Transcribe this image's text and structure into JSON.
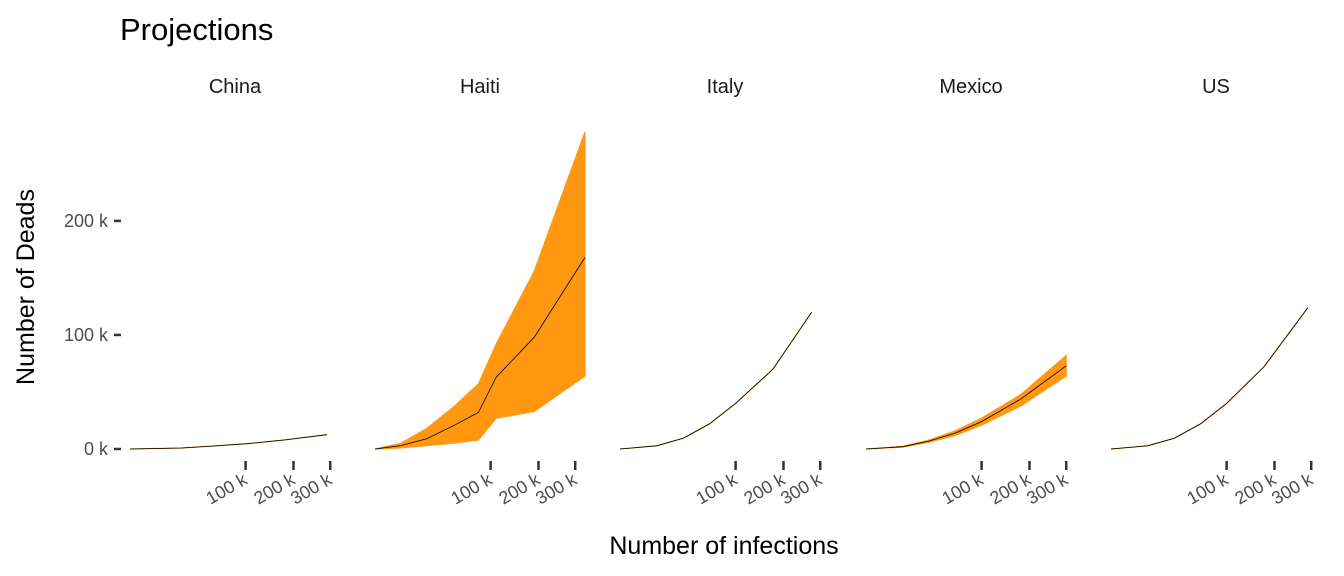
{
  "chart_data": {
    "type": "area",
    "title": "Projections",
    "xlabel": "Number of infections",
    "ylabel": "Number of Deads",
    "ylim": [
      0,
      285000
    ],
    "y_ticks": [
      {
        "value": 0,
        "label": "0 k"
      },
      {
        "value": 100000,
        "label": "100 k"
      },
      {
        "value": 200000,
        "label": "200 k"
      }
    ],
    "x_ticks": [
      {
        "value": 100000,
        "label": "100 k"
      },
      {
        "value": 200000,
        "label": "200 k"
      },
      {
        "value": 300000,
        "label": "300 k"
      }
    ],
    "x_scale": "sqrt",
    "band_color": "#FF9810",
    "line_color": "#000000",
    "grid": false,
    "panels": [
      {
        "name": "China",
        "x": [
          0,
          20000,
          50000,
          100000,
          180000,
          290000
        ],
        "y": [
          0,
          900,
          2500,
          4600,
          8000,
          12500
        ],
        "lower": [
          0,
          900,
          2500,
          4600,
          8000,
          12500
        ],
        "upper": [
          0,
          900,
          2500,
          4600,
          8000,
          12500
        ]
      },
      {
        "name": "Haiti",
        "x": [
          0,
          5000,
          20000,
          45000,
          80000,
          110000,
          190000,
          330000
        ],
        "y": [
          0,
          3000,
          9000,
          20000,
          32000,
          63000,
          98000,
          168000
        ],
        "lower": [
          0,
          1000,
          3000,
          5000,
          8000,
          27000,
          33000,
          64000
        ],
        "upper": [
          0,
          5000,
          18000,
          36000,
          57000,
          92000,
          156000,
          278000
        ]
      },
      {
        "name": "Italy",
        "x": [
          0,
          10000,
          30000,
          60000,
          100000,
          175000,
          275000
        ],
        "y": [
          0,
          2800,
          9500,
          22000,
          40000,
          70000,
          120000
        ],
        "lower": [
          0,
          2800,
          9500,
          22000,
          40000,
          70000,
          120000
        ],
        "upper": [
          0,
          2800,
          9500,
          22000,
          40000,
          70000,
          120000
        ]
      },
      {
        "name": "Mexico",
        "x": [
          0,
          10000,
          30000,
          60000,
          100000,
          180000,
          300000
        ],
        "y": [
          0,
          2000,
          7000,
          14000,
          24000,
          44000,
          73000
        ],
        "lower": [
          0,
          1700,
          6000,
          12000,
          21000,
          38000,
          64000
        ],
        "upper": [
          0,
          2300,
          8000,
          16000,
          27000,
          48000,
          82000
        ]
      },
      {
        "name": "US",
        "x": [
          0,
          10000,
          30000,
          60000,
          100000,
          175000,
          290000
        ],
        "y": [
          0,
          2800,
          9500,
          22000,
          40000,
          72000,
          124000
        ],
        "lower": [
          0,
          2800,
          9500,
          22000,
          40000,
          72000,
          124000
        ],
        "upper": [
          0,
          2800,
          9500,
          22000,
          40000,
          72000,
          124000
        ]
      }
    ]
  }
}
